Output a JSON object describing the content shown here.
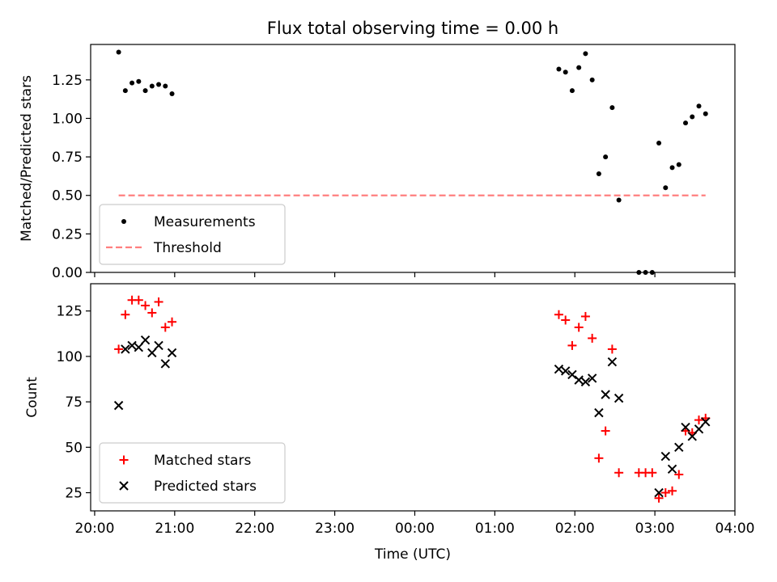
{
  "chart_data": [
    {
      "type": "scatter",
      "title": "Flux total observing time = 0.00 h",
      "ylabel": "Matched/Predicted stars",
      "xlabel": "",
      "xlim": [
        "19:57",
        "04:00"
      ],
      "ylim": [
        0,
        1.48
      ],
      "yticks": [
        "0.00",
        "0.25",
        "0.50",
        "0.75",
        "1.00",
        "1.25"
      ],
      "ytick_values": [
        0,
        0.25,
        0.5,
        0.75,
        1.0,
        1.25
      ],
      "xticks": [
        "20:00",
        "21:00",
        "22:00",
        "23:00",
        "00:00",
        "01:00",
        "02:00",
        "03:00",
        "04:00"
      ],
      "grid": false,
      "legend_position": "lower-left",
      "series": [
        {
          "name": "Measurements",
          "marker": "dot",
          "color": "#000000",
          "points": [
            [
              "20:18",
              1.43
            ],
            [
              "20:23",
              1.18
            ],
            [
              "20:28",
              1.23
            ],
            [
              "20:33",
              1.24
            ],
            [
              "20:38",
              1.18
            ],
            [
              "20:43",
              1.21
            ],
            [
              "20:48",
              1.22
            ],
            [
              "20:53",
              1.21
            ],
            [
              "20:58",
              1.16
            ],
            [
              "01:48",
              1.32
            ],
            [
              "01:53",
              1.3
            ],
            [
              "01:58",
              1.18
            ],
            [
              "02:03",
              1.33
            ],
            [
              "02:08",
              1.42
            ],
            [
              "02:13",
              1.25
            ],
            [
              "02:18",
              0.64
            ],
            [
              "02:23",
              0.75
            ],
            [
              "02:28",
              1.07
            ],
            [
              "02:33",
              0.47
            ],
            [
              "02:48",
              0.0
            ],
            [
              "02:53",
              0.0
            ],
            [
              "02:58",
              0.0
            ],
            [
              "03:03",
              0.84
            ],
            [
              "03:08",
              0.55
            ],
            [
              "03:13",
              0.68
            ],
            [
              "03:18",
              0.7
            ],
            [
              "03:23",
              0.97
            ],
            [
              "03:28",
              1.01
            ],
            [
              "03:33",
              1.08
            ],
            [
              "03:38",
              1.03
            ]
          ]
        },
        {
          "name": "Threshold",
          "style": "dashed-line",
          "color": "#ff7f7f",
          "x": [
            "20:18",
            "03:38"
          ],
          "y": [
            0.5,
            0.5
          ]
        }
      ]
    },
    {
      "type": "scatter",
      "title": "",
      "ylabel": "Count",
      "xlabel": "Time (UTC)",
      "xlim": [
        "19:57",
        "04:00"
      ],
      "ylim": [
        15,
        140
      ],
      "yticks": [
        "25",
        "50",
        "75",
        "100",
        "125"
      ],
      "ytick_values": [
        25,
        50,
        75,
        100,
        125
      ],
      "xticks": [
        "20:00",
        "21:00",
        "22:00",
        "23:00",
        "00:00",
        "01:00",
        "02:00",
        "03:00",
        "04:00"
      ],
      "grid": false,
      "legend_position": "lower-left",
      "series": [
        {
          "name": "Matched stars",
          "marker": "plus",
          "color": "#ff0000",
          "points": [
            [
              "20:18",
              104
            ],
            [
              "20:23",
              123
            ],
            [
              "20:28",
              131
            ],
            [
              "20:33",
              131
            ],
            [
              "20:38",
              128
            ],
            [
              "20:43",
              124
            ],
            [
              "20:48",
              130
            ],
            [
              "20:53",
              116
            ],
            [
              "20:58",
              119
            ],
            [
              "01:48",
              123
            ],
            [
              "01:53",
              120
            ],
            [
              "01:58",
              106
            ],
            [
              "02:03",
              116
            ],
            [
              "02:08",
              122
            ],
            [
              "02:13",
              110
            ],
            [
              "02:18",
              44
            ],
            [
              "02:23",
              59
            ],
            [
              "02:28",
              104
            ],
            [
              "02:33",
              36
            ],
            [
              "02:48",
              36
            ],
            [
              "02:53",
              36
            ],
            [
              "02:58",
              36
            ],
            [
              "03:03",
              22
            ],
            [
              "03:08",
              25
            ],
            [
              "03:13",
              26
            ],
            [
              "03:18",
              35
            ],
            [
              "03:23",
              59
            ],
            [
              "03:28",
              58
            ],
            [
              "03:33",
              65
            ],
            [
              "03:38",
              66
            ]
          ]
        },
        {
          "name": "Predicted stars",
          "marker": "x",
          "color": "#000000",
          "points": [
            [
              "20:18",
              73
            ],
            [
              "20:23",
              104
            ],
            [
              "20:28",
              106
            ],
            [
              "20:33",
              105
            ],
            [
              "20:38",
              109
            ],
            [
              "20:43",
              102
            ],
            [
              "20:48",
              106
            ],
            [
              "20:53",
              96
            ],
            [
              "20:58",
              102
            ],
            [
              "01:48",
              93
            ],
            [
              "01:53",
              92
            ],
            [
              "01:58",
              90
            ],
            [
              "02:03",
              87
            ],
            [
              "02:08",
              86
            ],
            [
              "02:13",
              88
            ],
            [
              "02:18",
              69
            ],
            [
              "02:23",
              79
            ],
            [
              "02:28",
              97
            ],
            [
              "02:33",
              77
            ],
            [
              "03:03",
              25
            ],
            [
              "03:08",
              45
            ],
            [
              "03:13",
              38
            ],
            [
              "03:18",
              50
            ],
            [
              "03:23",
              61
            ],
            [
              "03:28",
              56
            ],
            [
              "03:33",
              60
            ],
            [
              "03:38",
              64
            ]
          ]
        }
      ]
    }
  ]
}
